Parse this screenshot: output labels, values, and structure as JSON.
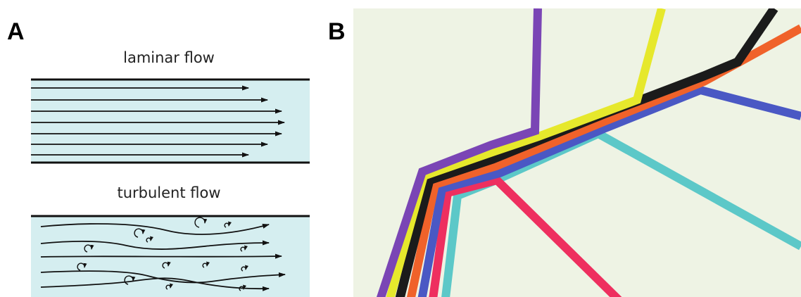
{
  "panel_a": {
    "label": "A",
    "laminar": {
      "title": "laminar flow"
    },
    "turbulent": {
      "title": "turbulent flow"
    },
    "fluid_color": "#d5eef0",
    "line_color": "#111111"
  },
  "panel_b": {
    "label": "B",
    "background_color": "#eef3e4",
    "stream_colors": {
      "purple": "#7a45b5",
      "yellow": "#e6e82c",
      "black": "#1b1b1b",
      "orange": "#f0622a",
      "blue": "#4a58c4",
      "cyan": "#5cc8c8",
      "pink": "#ee2f5f"
    }
  }
}
